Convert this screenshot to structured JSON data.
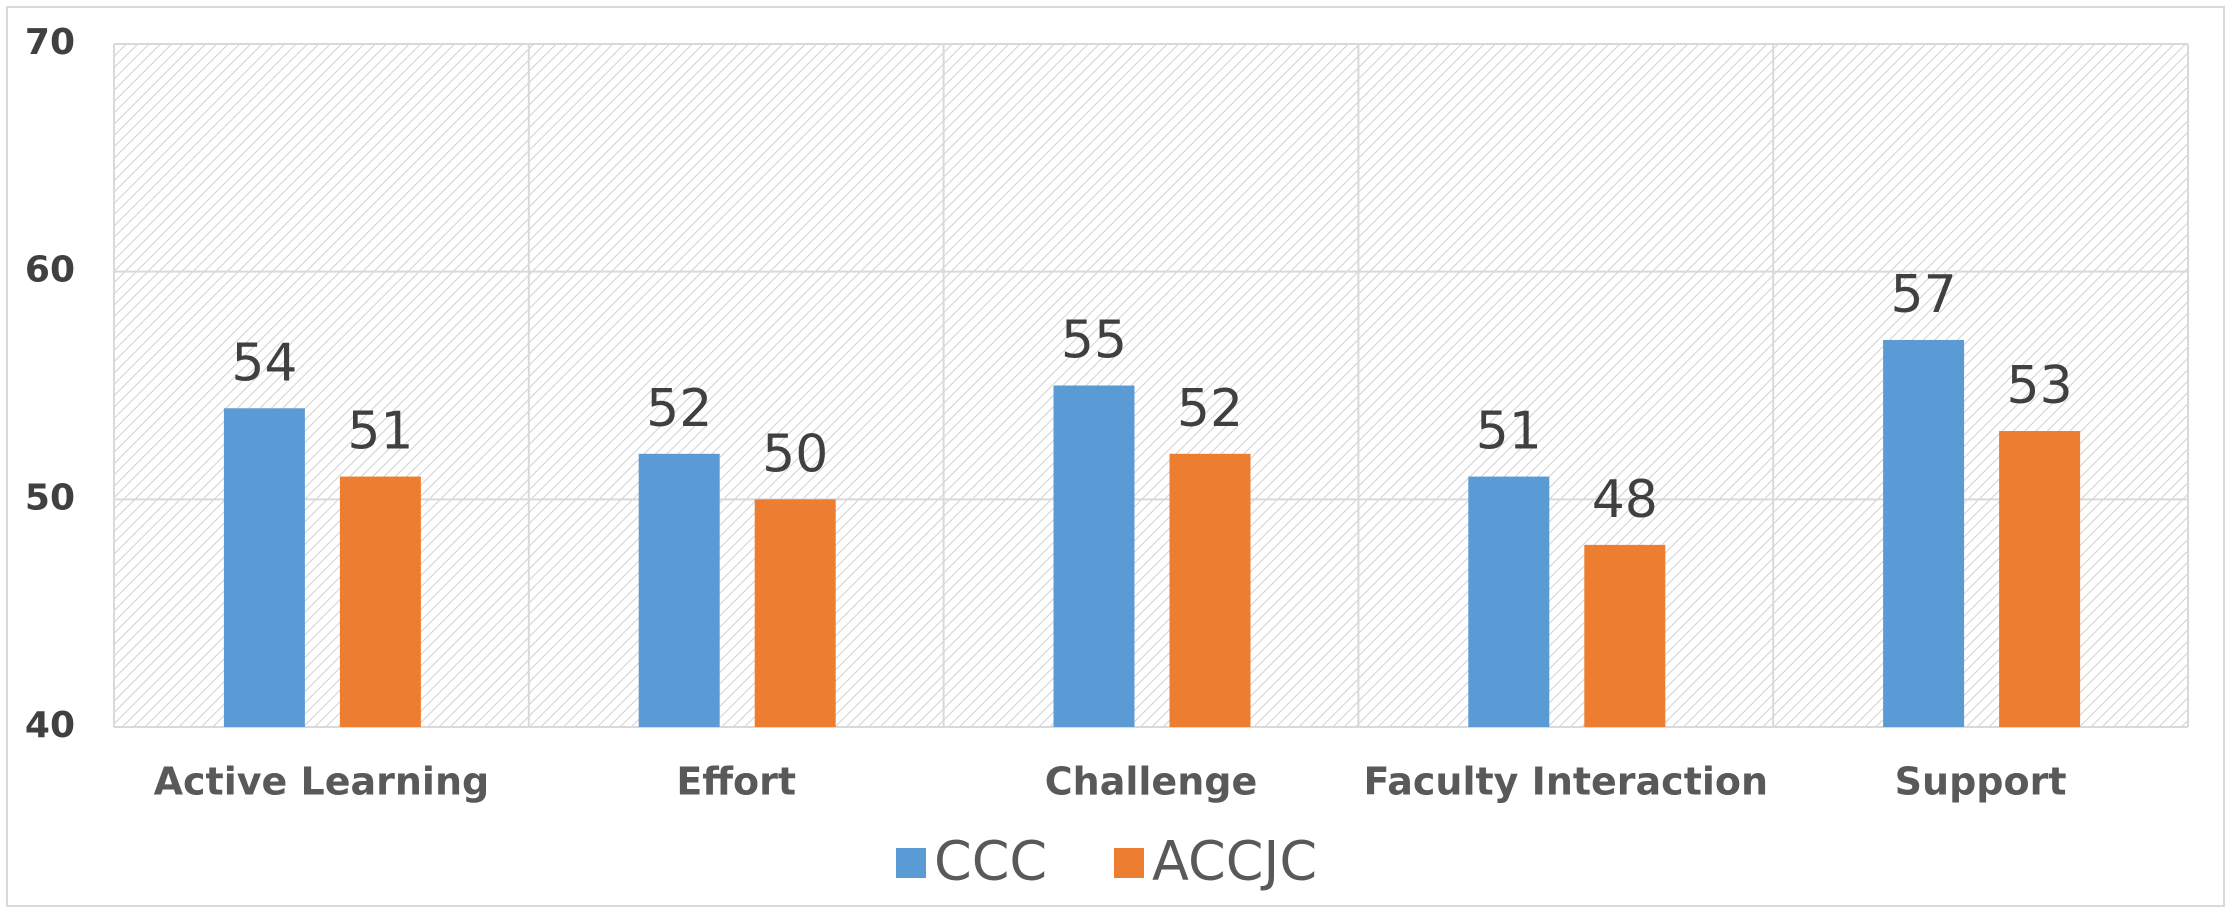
{
  "chart_data": {
    "type": "bar",
    "categories": [
      "Active Learning",
      "Effort",
      "Challenge",
      "Faculty Interaction",
      "Support"
    ],
    "series": [
      {
        "name": "CCC",
        "color": "#5b9bd5",
        "values": [
          54,
          52,
          55,
          51,
          57
        ]
      },
      {
        "name": "ACCJC",
        "color": "#ed7d31",
        "values": [
          51,
          50,
          52,
          48,
          53
        ]
      }
    ],
    "ylim": [
      40,
      70
    ],
    "yticks": [
      40,
      50,
      60,
      70
    ],
    "grid": true,
    "legend": "bottom"
  }
}
